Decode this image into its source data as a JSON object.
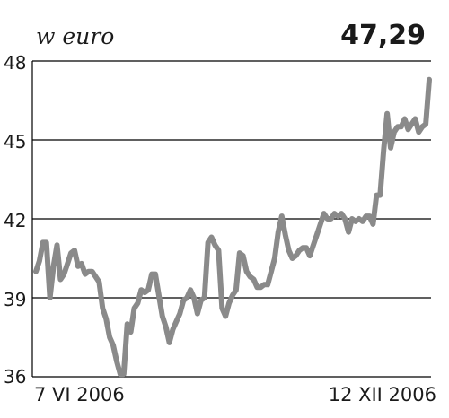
{
  "header": {
    "unit_label": "w euro",
    "last_value": "47,29"
  },
  "colors": {
    "line": "#8a8a8a",
    "grid": "#000000",
    "text": "#1a1a1a"
  },
  "chart_data": {
    "type": "line",
    "title": "",
    "xlabel": "",
    "ylabel": "w euro",
    "ylim": [
      36,
      48
    ],
    "yticks": [
      36,
      39,
      42,
      45,
      48
    ],
    "ytick_labels": [
      "36",
      "39",
      "42",
      "45",
      "48"
    ],
    "x_start_label": "7 VI 2006",
    "x_end_label": "12 XII 2006",
    "grid": true,
    "series": [
      {
        "values": [
          40.0,
          40.4,
          41.1,
          41.1,
          39.0,
          40.2,
          41.0,
          39.7,
          39.9,
          40.3,
          40.7,
          40.8,
          40.2,
          40.3,
          39.9,
          40.0,
          40.0,
          39.8,
          39.6,
          38.6,
          38.2,
          37.5,
          37.2,
          36.6,
          36.1,
          36.1,
          38.0,
          37.7,
          38.6,
          38.8,
          39.3,
          39.2,
          39.3,
          39.9,
          39.9,
          39.1,
          38.3,
          37.9,
          37.3,
          37.8,
          38.1,
          38.4,
          38.9,
          39.0,
          39.3,
          39.0,
          38.4,
          38.9,
          39.0,
          41.1,
          41.3,
          41.0,
          40.8,
          38.6,
          38.3,
          38.8,
          39.1,
          39.3,
          40.7,
          40.6,
          40.0,
          39.8,
          39.7,
          39.4,
          39.4,
          39.5,
          39.5,
          40.0,
          40.5,
          41.5,
          42.1,
          41.4,
          40.8,
          40.5,
          40.6,
          40.8,
          40.9,
          40.9,
          40.6,
          41.0,
          41.4,
          41.8,
          42.2,
          42.0,
          42.0,
          42.2,
          42.1,
          42.2,
          42.0,
          41.5,
          42.0,
          41.9,
          42.0,
          41.9,
          42.1,
          42.1,
          41.8,
          42.9,
          42.9,
          44.6,
          46.0,
          44.7,
          45.3,
          45.5,
          45.5,
          45.8,
          45.4,
          45.6,
          45.8,
          45.3,
          45.5,
          45.6,
          47.29
        ]
      }
    ]
  }
}
